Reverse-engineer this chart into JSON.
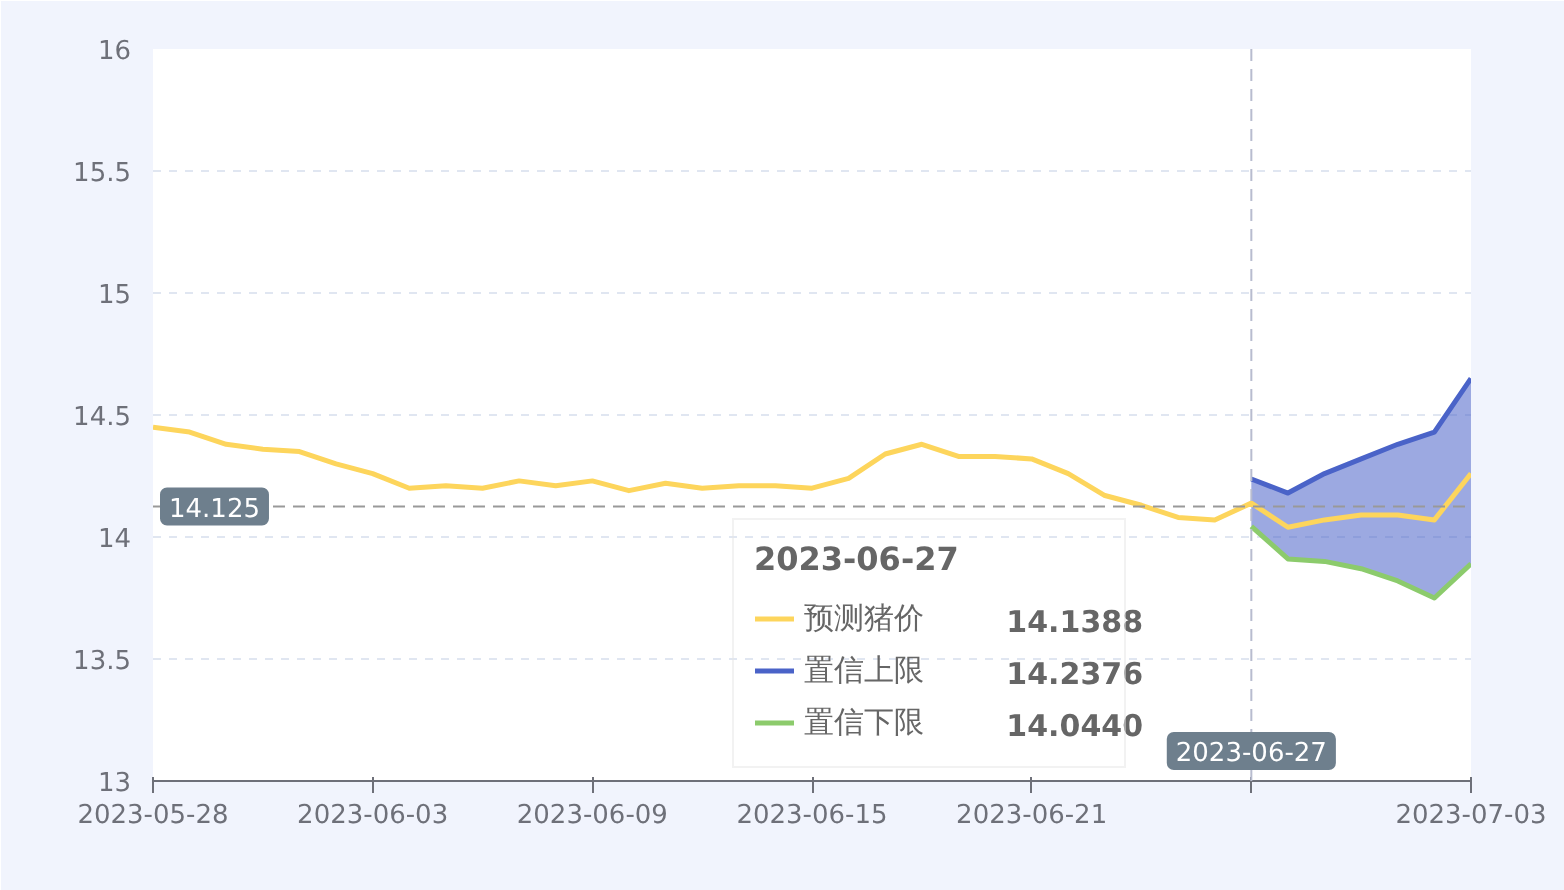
{
  "chart_data": {
    "type": "line",
    "x": [
      "2023-05-28",
      "2023-05-29",
      "2023-05-30",
      "2023-05-31",
      "2023-06-01",
      "2023-06-02",
      "2023-06-03",
      "2023-06-04",
      "2023-06-05",
      "2023-06-06",
      "2023-06-07",
      "2023-06-08",
      "2023-06-09",
      "2023-06-10",
      "2023-06-11",
      "2023-06-12",
      "2023-06-13",
      "2023-06-14",
      "2023-06-15",
      "2023-06-16",
      "2023-06-17",
      "2023-06-18",
      "2023-06-19",
      "2023-06-20",
      "2023-06-21",
      "2023-06-22",
      "2023-06-23",
      "2023-06-24",
      "2023-06-25",
      "2023-06-26",
      "2023-06-27",
      "2023-06-28",
      "2023-06-29",
      "2023-06-30",
      "2023-07-01",
      "2023-07-02",
      "2023-07-03"
    ],
    "series": [
      {
        "name": "预测猪价",
        "color": "#fdd55c",
        "values": [
          14.45,
          14.43,
          14.38,
          14.36,
          14.35,
          14.3,
          14.26,
          14.2,
          14.21,
          14.2,
          14.23,
          14.21,
          14.23,
          14.19,
          14.22,
          14.2,
          14.21,
          14.21,
          14.2,
          14.24,
          14.34,
          14.38,
          14.33,
          14.33,
          14.32,
          14.26,
          14.17,
          14.13,
          14.08,
          14.07,
          14.1388,
          14.04,
          14.07,
          14.09,
          14.09,
          14.07,
          14.26
        ]
      },
      {
        "name": "置信上限",
        "type": "area",
        "color": "#4a63c8",
        "x": [
          "2023-06-27",
          "2023-06-28",
          "2023-06-29",
          "2023-06-30",
          "2023-07-01",
          "2023-07-02",
          "2023-07-03"
        ],
        "values": [
          14.2376,
          14.18,
          14.26,
          14.32,
          14.38,
          14.43,
          14.65
        ]
      },
      {
        "name": "置信下限",
        "color": "#8ccb6c",
        "x": [
          "2023-06-27",
          "2023-06-28",
          "2023-06-29",
          "2023-06-30",
          "2023-07-01",
          "2023-07-02",
          "2023-07-03"
        ],
        "values": [
          14.044,
          13.91,
          13.9,
          13.87,
          13.82,
          13.75,
          13.89
        ]
      }
    ],
    "xlim": [
      "2023-05-28",
      "2023-07-03"
    ],
    "xticks": [
      "2023-05-28",
      "2023-06-03",
      "2023-06-09",
      "2023-06-15",
      "2023-06-21",
      {
        "value": "2023-06-27",
        "label": null
      },
      "2023-07-03"
    ],
    "ylim": [
      13,
      16
    ],
    "yticks": [
      13,
      13.5,
      14,
      14.5,
      15,
      15.5,
      16
    ],
    "grid": "y",
    "legend": "bottom",
    "line_style": "solid",
    "marker": "none",
    "ref_lines": [
      {
        "axis": "x",
        "value": "2023-06-27",
        "label": "2023-06-27",
        "color": "#b8bccf",
        "line_style": "dashed"
      },
      {
        "axis": "y",
        "value": 14.125,
        "label": "14.125",
        "color": "#999999",
        "line_style": "dashed"
      }
    ],
    "legend_title": "2023-06-27",
    "annotations": [
      "14.1388",
      "14.2376",
      "14.0440"
    ]
  }
}
